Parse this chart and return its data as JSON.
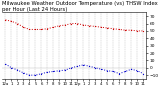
{
  "title": "Milwaukee Weather Outdoor Temperature (vs) THSW Index per Hour (Last 24 Hours)",
  "title_fontsize": 3.8,
  "background_color": "#ffffff",
  "grid_color": "#bbbbbb",
  "temp_color": "#cc0000",
  "thsw_color": "#0000cc",
  "ylim": [
    -15,
    75
  ],
  "yticks": [
    -10,
    0,
    10,
    20,
    30,
    40,
    50,
    60,
    70
  ],
  "ytick_fontsize": 3.2,
  "xtick_fontsize": 2.8,
  "hours": [
    0,
    1,
    2,
    3,
    4,
    5,
    6,
    7,
    8,
    9,
    10,
    11,
    12,
    13,
    14,
    15,
    16,
    17,
    18,
    19,
    20,
    21,
    22,
    23
  ],
  "temp_values": [
    65,
    63,
    60,
    55,
    52,
    52,
    52,
    53,
    55,
    57,
    58,
    60,
    60,
    58,
    57,
    56,
    55,
    54,
    53,
    52,
    51,
    51,
    50,
    50
  ],
  "thsw_values": [
    5,
    0,
    -3,
    -7,
    -10,
    -10,
    -8,
    -6,
    -5,
    -4,
    -3,
    0,
    2,
    4,
    2,
    0,
    -2,
    -4,
    -5,
    -8,
    -5,
    -2,
    -4,
    -8
  ],
  "xlabel": "",
  "ylabel": "",
  "xtick_labels": [
    "12a",
    "1",
    "2",
    "3",
    "4",
    "5",
    "6",
    "7",
    "8",
    "9",
    "10",
    "11",
    "12p",
    "1",
    "2",
    "3",
    "4",
    "5",
    "6",
    "7",
    "8",
    "9",
    "10",
    "11"
  ]
}
